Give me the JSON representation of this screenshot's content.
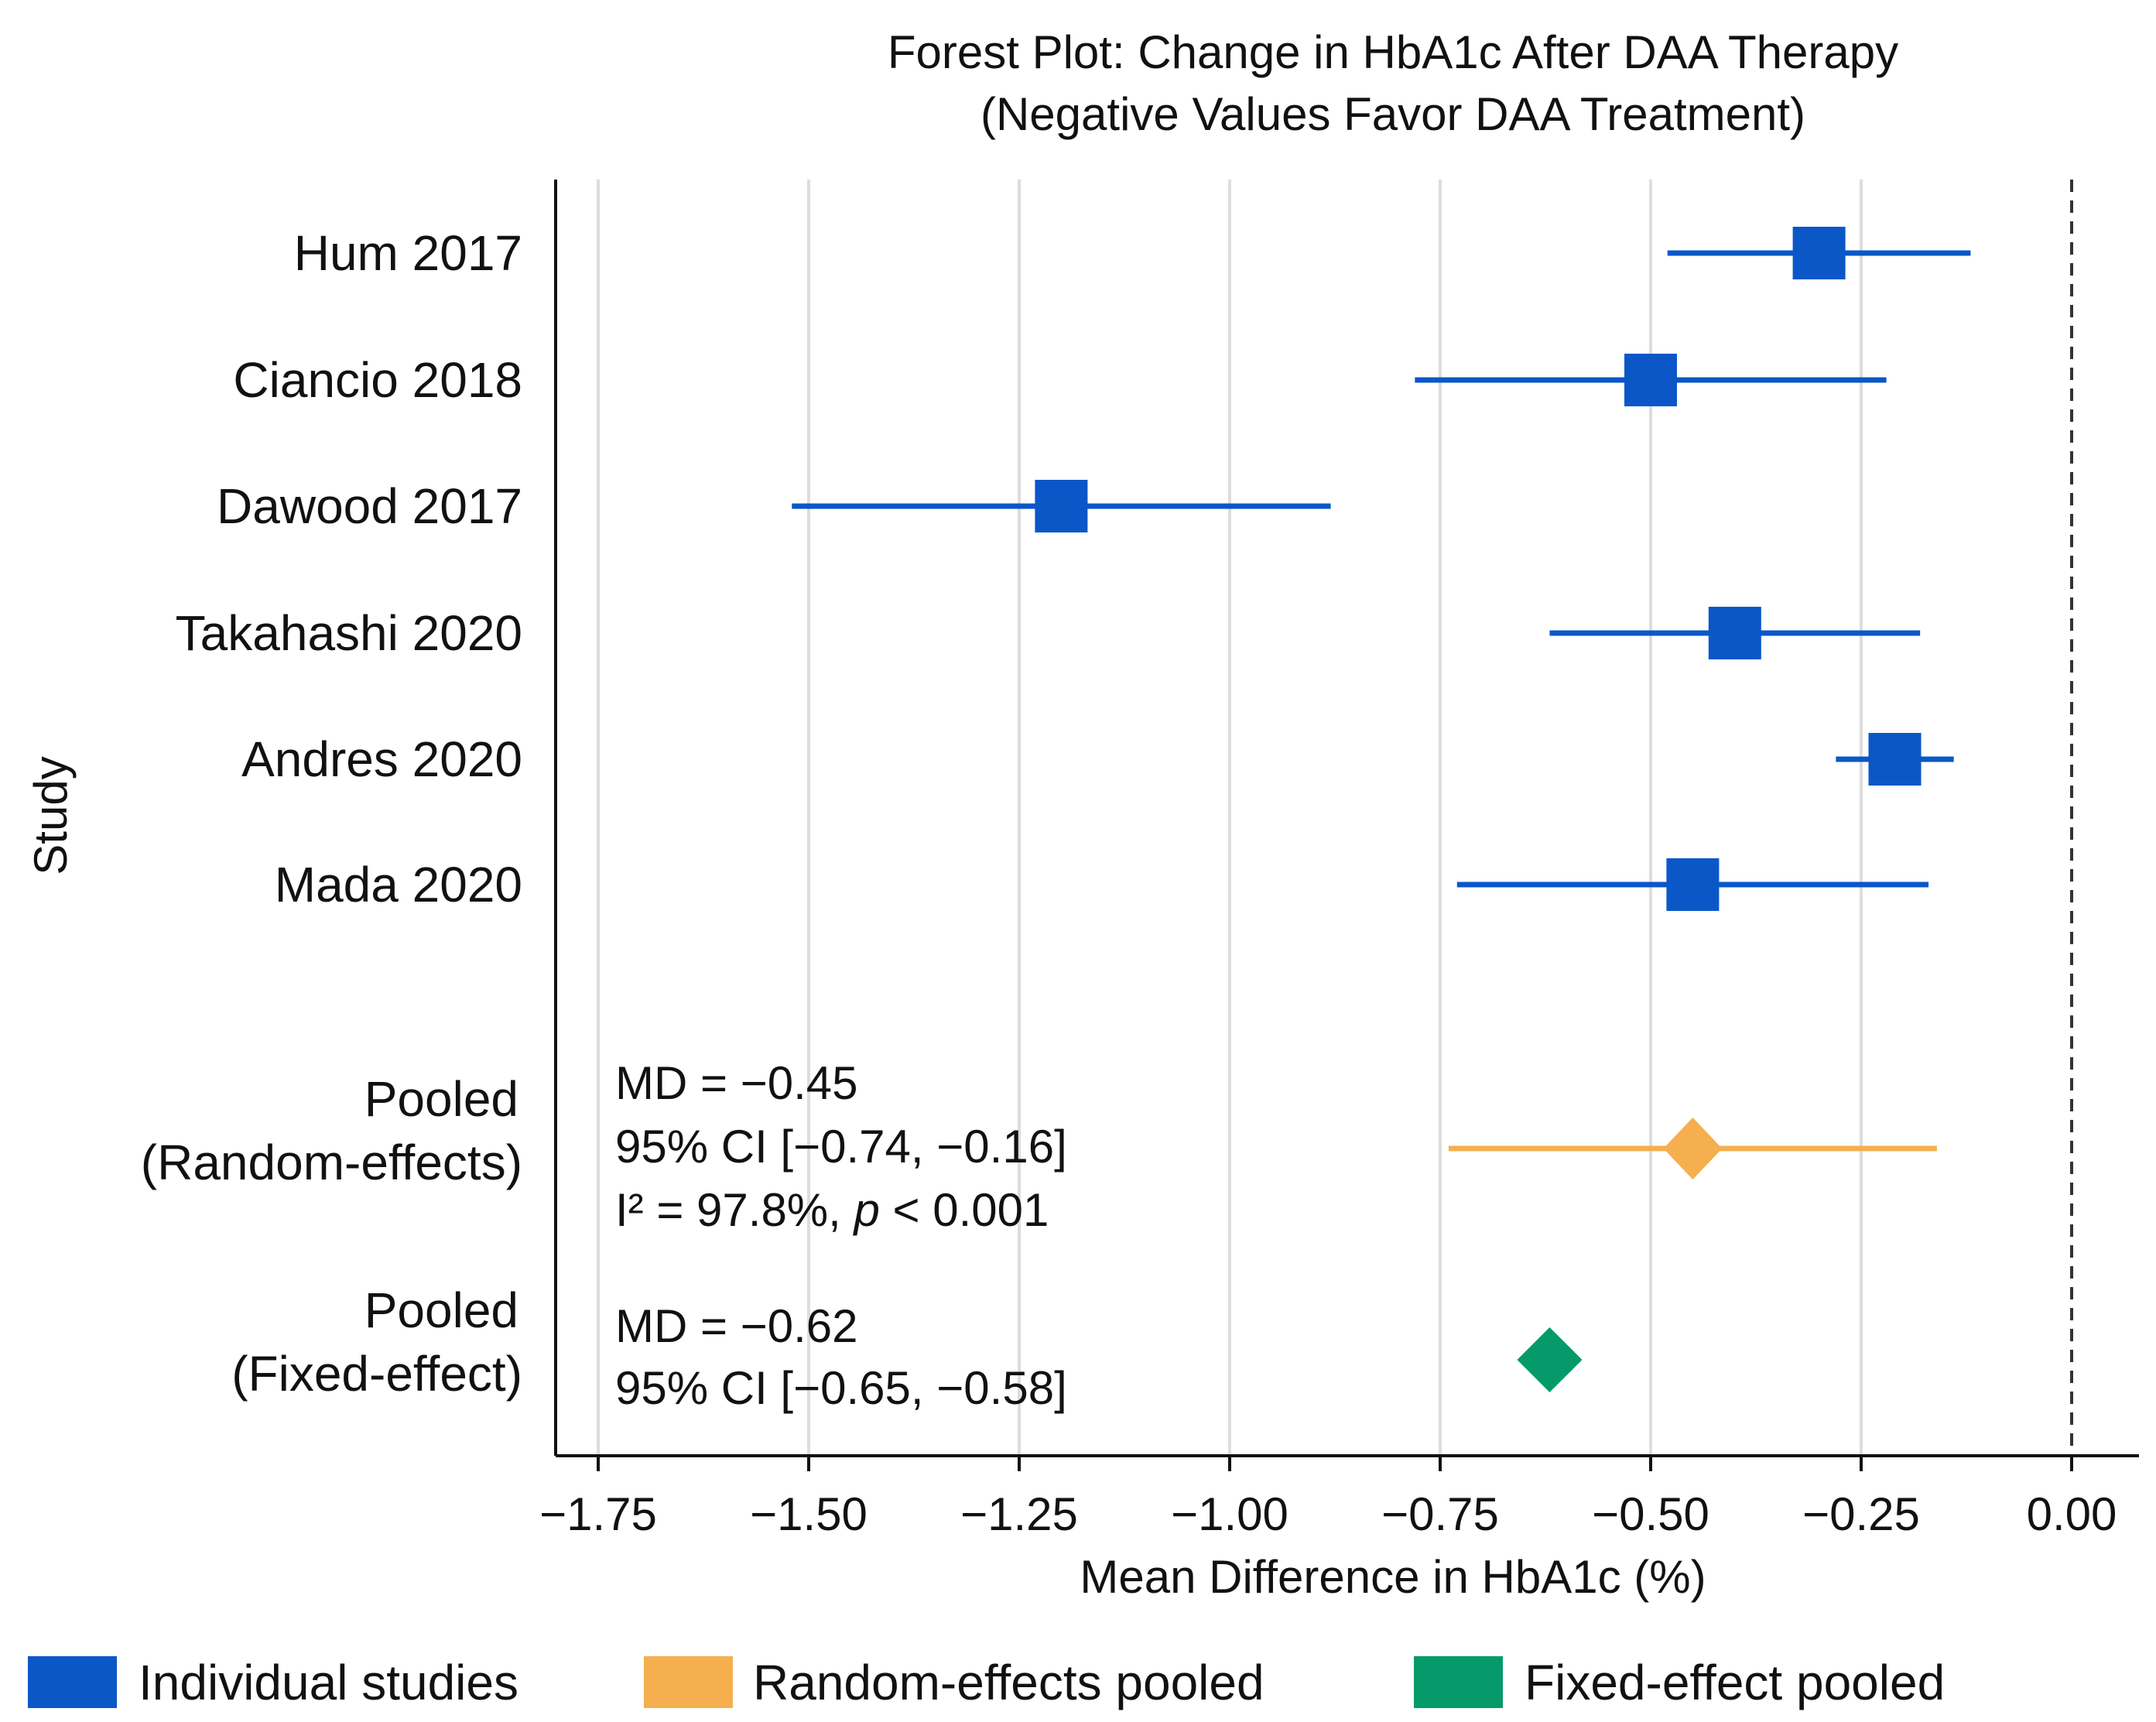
{
  "chart_data": {
    "type": "forest",
    "title": [
      "Forest Plot: Change in HbA1c After DAA Therapy",
      "(Negative Values Favor DAA Treatment)"
    ],
    "xlabel": "Mean Difference in HbA1c (%)",
    "ylabel": "Study",
    "xlim": [
      -1.8,
      0.08
    ],
    "xticks": [
      -1.75,
      -1.5,
      -1.25,
      -1.0,
      -0.75,
      -0.5,
      -0.25,
      0.0
    ],
    "xtick_labels": [
      "−1.75",
      "−1.50",
      "−1.25",
      "−1.00",
      "−0.75",
      "−0.50",
      "−0.25",
      "0.00"
    ],
    "grid": "vertical",
    "reference_line": 0.0,
    "studies": [
      {
        "label": "Hum 2017",
        "md": -0.3,
        "lo": -0.48,
        "hi": -0.12
      },
      {
        "label": "Ciancio 2018",
        "md": -0.5,
        "lo": -0.78,
        "hi": -0.22
      },
      {
        "label": "Dawood 2017",
        "md": -1.2,
        "lo": -1.52,
        "hi": -0.88
      },
      {
        "label": "Takahashi 2020",
        "md": -0.4,
        "lo": -0.62,
        "hi": -0.18
      },
      {
        "label": "Andres 2020",
        "md": -0.21,
        "lo": -0.28,
        "hi": -0.14
      },
      {
        "label": "Mada 2020",
        "md": -0.45,
        "lo": -0.73,
        "hi": -0.17
      }
    ],
    "pooled": [
      {
        "label": [
          "Pooled",
          "(Random-effects)"
        ],
        "md": -0.45,
        "lo": -0.74,
        "hi": -0.16,
        "color_key": "random",
        "annotation": [
          "MD = −0.45",
          "95% CI [−0.74, −0.16]",
          "I² = 97.8%, ",
          "p",
          " < 0.001"
        ]
      },
      {
        "label": [
          "Pooled",
          "(Fixed-effect)"
        ],
        "md": -0.62,
        "lo": -0.65,
        "hi": -0.58,
        "color_key": "fixed",
        "annotation": [
          "MD = −0.62",
          "95% CI [−0.65, −0.58]"
        ]
      }
    ],
    "legend": {
      "placement": "bottom",
      "entries": [
        {
          "label": "Individual studies",
          "color_key": "individual"
        },
        {
          "label": "Random-effects pooled",
          "color_key": "random"
        },
        {
          "label": "Fixed-effect pooled",
          "color_key": "fixed"
        }
      ]
    },
    "colors": {
      "individual": "#0B57C8",
      "random": "#F5AF4F",
      "fixed": "#069A6B",
      "grid": "#DDDDDD",
      "axis": "#111111"
    }
  }
}
